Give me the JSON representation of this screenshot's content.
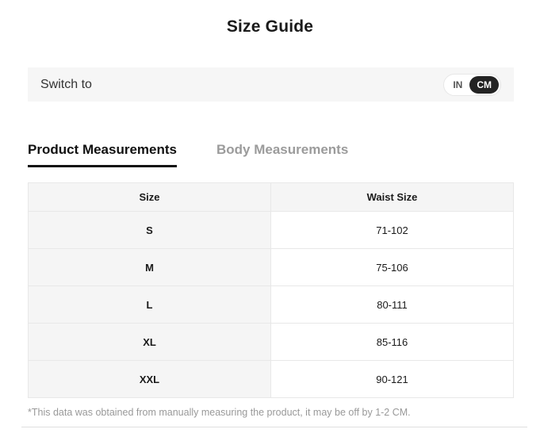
{
  "title": "Size Guide",
  "unit_switch": {
    "label": "Switch to",
    "options": [
      {
        "label": "IN",
        "selected": false
      },
      {
        "label": "CM",
        "selected": true
      }
    ],
    "selected_unit": "CM",
    "selected_pill_color": "#232323"
  },
  "tabs": [
    {
      "label": "Product Measurements",
      "active": true
    },
    {
      "label": "Body Measurements",
      "active": false
    }
  ],
  "table": {
    "headers": [
      "Size",
      "Waist Size"
    ],
    "rows": [
      [
        "S",
        "71-102"
      ],
      [
        "M",
        "75-106"
      ],
      [
        "L",
        "80-111"
      ],
      [
        "XL",
        "85-116"
      ],
      [
        "XXL",
        "90-121"
      ]
    ]
  },
  "footnote": "*This data was obtained from manually measuring the product, it may be off by 1-2 CM.",
  "colors": {
    "bar_background": "#f6f6f6",
    "table_gray_cell": "#f5f5f5",
    "table_border": "#e8e8e8",
    "inactive_tab": "#9b9b9b",
    "footnote_text": "#999999",
    "active_tab": "#111111"
  }
}
